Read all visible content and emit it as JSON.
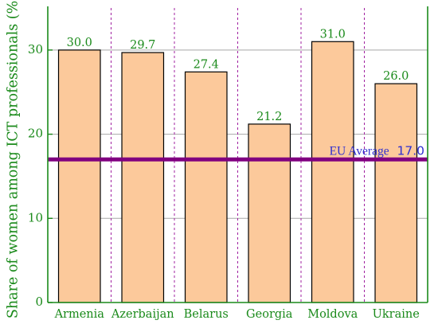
{
  "chart_data": {
    "type": "bar",
    "title": "",
    "xlabel": "",
    "ylabel": "Share of women among ICT professionals (%)",
    "categories": [
      "Armenia",
      "Azerbaijan",
      "Belarus",
      "Georgia",
      "Moldova",
      "Ukraine"
    ],
    "values": [
      30.0,
      29.7,
      27.4,
      21.2,
      31.0,
      26.0
    ],
    "value_labels": [
      "30.0",
      "29.7",
      "27.4",
      "21.2",
      "31.0",
      "26.0"
    ],
    "ylim": [
      0,
      35
    ],
    "yticks": [
      0,
      10,
      20,
      30
    ],
    "ytick_labels": [
      "0",
      "10",
      "20",
      "30"
    ],
    "grid": "horizontal solid, vertical dashed between categories",
    "reference_line": {
      "value": 17.0,
      "label": "EU Average",
      "value_label": "17.0"
    },
    "colors": {
      "bar_fill": "#fcc99b",
      "bar_stroke": "#000000",
      "axis": "#1a8a1a",
      "tick_label": "#1a8a1a",
      "value_label": "#1a8a1a",
      "reference_line": "#800080",
      "reference_label": "#2f2fd0",
      "hgrid": "#a8a8a8",
      "vgrid": "#a020a0"
    }
  }
}
